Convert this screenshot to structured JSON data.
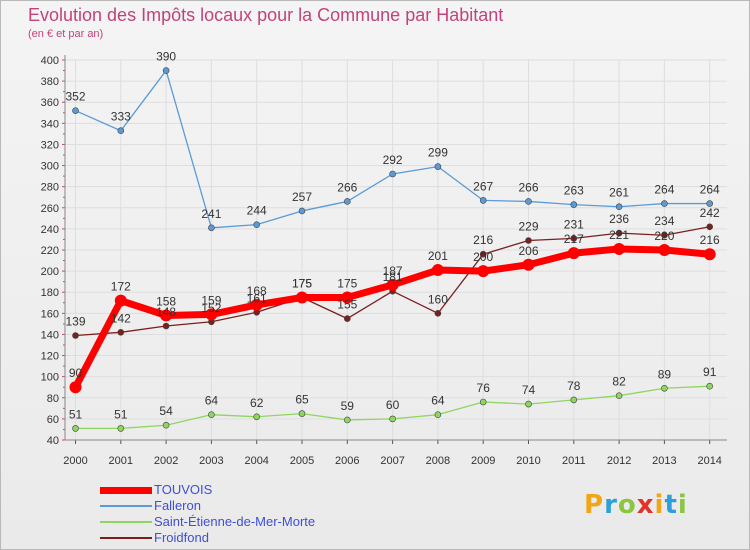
{
  "title": "Evolution des Impôts locaux pour la Commune par Habitant",
  "subtitle": "(en € et par an)",
  "logo": {
    "text": "Proxiti",
    "colors": [
      "#f2a516",
      "#2e9fd8",
      "#8cc63f",
      "#e2322a",
      "#f2a516",
      "#2e9fd8",
      "#8cc63f"
    ]
  },
  "chart_data": {
    "type": "line",
    "title": "Evolution des Impôts locaux pour la Commune par Habitant",
    "subtitle": "(en € et par an)",
    "x": [
      "2000",
      "2001",
      "2002",
      "2003",
      "2004",
      "2005",
      "2006",
      "2007",
      "2008",
      "2009",
      "2010",
      "2011",
      "2012",
      "2013",
      "2014"
    ],
    "ylim": [
      40,
      400
    ],
    "yticks": [
      40,
      60,
      80,
      100,
      120,
      140,
      160,
      180,
      200,
      220,
      240,
      260,
      280,
      300,
      320,
      340,
      360,
      380,
      400
    ],
    "grid": true,
    "legend_position": "bottom-left",
    "series": [
      {
        "name": "TOUVOIS",
        "color": "#ff0000",
        "values": [
          90,
          172,
          158,
          159,
          168,
          175,
          175,
          187,
          201,
          200,
          206,
          217,
          221,
          220,
          216
        ],
        "labels": [
          "90",
          "172",
          "158",
          "159",
          "168",
          "175",
          "175",
          "187",
          "201",
          "200",
          "206",
          "217",
          "221",
          "220",
          "216"
        ]
      },
      {
        "name": "Falleron",
        "color": "#5b9bd5",
        "values": [
          352,
          333,
          390,
          241,
          244,
          257,
          266,
          292,
          299,
          267,
          266,
          263,
          261,
          264,
          264
        ],
        "labels": [
          "352",
          "333",
          "390",
          "241",
          "244",
          "257",
          "266",
          "292",
          "299",
          "267",
          "266",
          "263",
          "261",
          "264",
          "264"
        ]
      },
      {
        "name": "Saint-Étienne-de-Mer-Morte",
        "color": "#8ed65f",
        "values": [
          51,
          51,
          54,
          64,
          62,
          65,
          59,
          60,
          64,
          76,
          74,
          78,
          82,
          89,
          91
        ],
        "labels": [
          "51",
          "51",
          "54",
          "64",
          "62",
          "65",
          "59",
          "60",
          "64",
          "76",
          "74",
          "78",
          "82",
          "89",
          "91"
        ]
      },
      {
        "name": "Froidfond",
        "color": "#7b1f1f",
        "values": [
          139,
          142,
          148,
          152,
          161,
          175,
          155,
          181,
          160,
          216,
          229,
          231,
          236,
          234,
          242
        ],
        "labels": [
          "139",
          "142",
          "148",
          "152",
          "161",
          "175",
          "155",
          "181",
          "160",
          "216",
          "229",
          "231",
          "236",
          "234",
          "242"
        ]
      }
    ]
  }
}
